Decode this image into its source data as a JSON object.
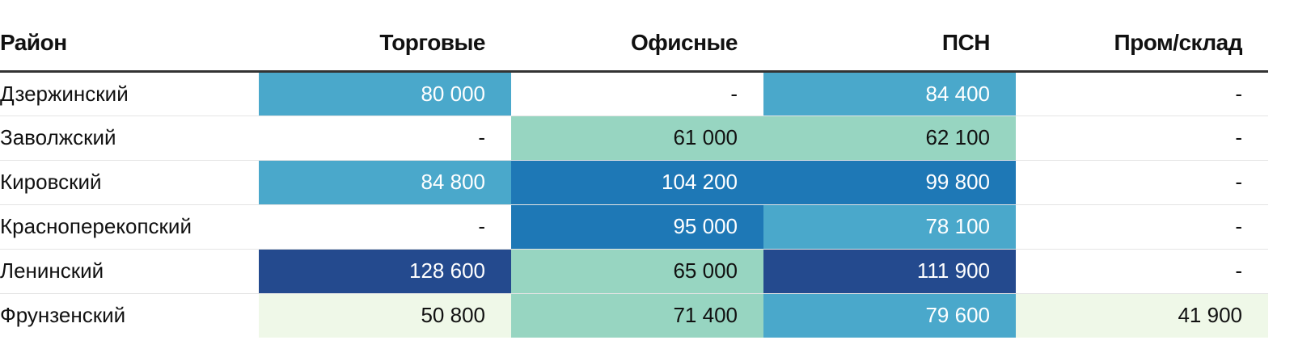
{
  "chart_data": {
    "type": "table",
    "columns": [
      "Район",
      "Торговые",
      "Офисные",
      "ПСН",
      "Пром/склад"
    ],
    "rows": [
      {
        "district": "Дзержинский",
        "cells": [
          {
            "text": "80 000",
            "value": 80000
          },
          {
            "text": "-",
            "value": null
          },
          {
            "text": "84 400",
            "value": 84400
          },
          {
            "text": "-",
            "value": null
          }
        ]
      },
      {
        "district": "Заволжский",
        "cells": [
          {
            "text": "-",
            "value": null
          },
          {
            "text": "61 000",
            "value": 61000
          },
          {
            "text": "62 100",
            "value": 62100
          },
          {
            "text": "-",
            "value": null
          }
        ]
      },
      {
        "district": "Кировский",
        "cells": [
          {
            "text": "84 800",
            "value": 84800
          },
          {
            "text": "104 200",
            "value": 104200
          },
          {
            "text": "99 800",
            "value": 99800
          },
          {
            "text": "-",
            "value": null
          }
        ]
      },
      {
        "district": "Красноперекопский",
        "cells": [
          {
            "text": "-",
            "value": null
          },
          {
            "text": "95 000",
            "value": 95000
          },
          {
            "text": "78 100",
            "value": 78100
          },
          {
            "text": "-",
            "value": null
          }
        ]
      },
      {
        "district": "Ленинский",
        "cells": [
          {
            "text": "128 600",
            "value": 128600
          },
          {
            "text": "65 000",
            "value": 65000
          },
          {
            "text": "111 900",
            "value": 111900
          },
          {
            "text": "-",
            "value": null
          }
        ]
      },
      {
        "district": "Фрунзенский",
        "cells": [
          {
            "text": "50 800",
            "value": 50800
          },
          {
            "text": "71 400",
            "value": 71400
          },
          {
            "text": "79 600",
            "value": 79600
          },
          {
            "text": "41 900",
            "value": 41900
          }
        ]
      }
    ],
    "color_scale": {
      "empty": "#ffffff",
      "steps": [
        {
          "min": 0,
          "color": "#eff8e8"
        },
        {
          "min": 55000,
          "color": "#97d5c1"
        },
        {
          "min": 75000,
          "color": "#4aa8cb"
        },
        {
          "min": 90000,
          "color": "#1e78b6"
        },
        {
          "min": 110000,
          "color": "#244a8e"
        }
      ]
    }
  }
}
